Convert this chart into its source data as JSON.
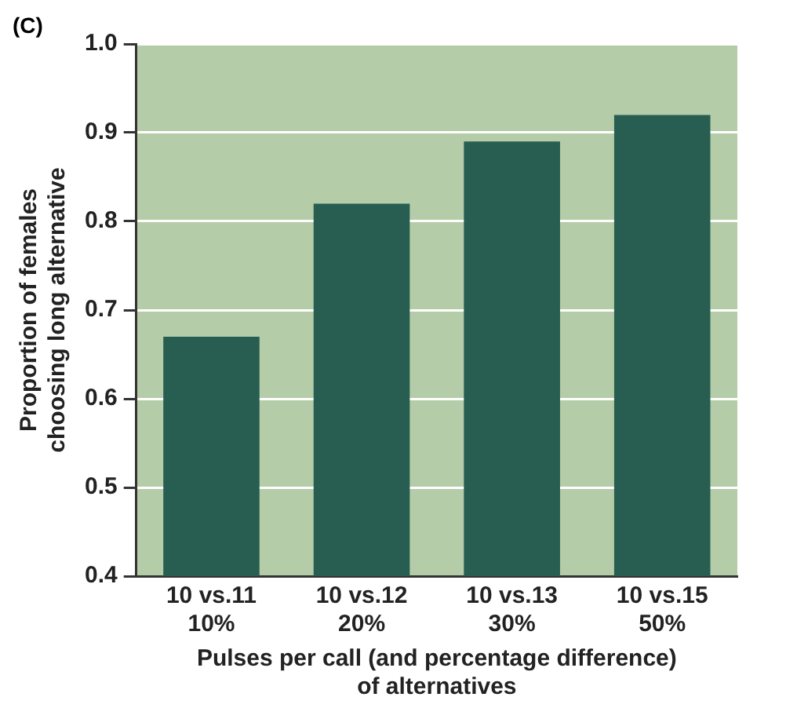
{
  "chart_data": {
    "type": "bar",
    "annotations": [
      "(C)"
    ],
    "xlabel": "Pulses per call (and percentage difference)\nof alternatives",
    "ylabel": "Proportion of females\nchoosing long alternative",
    "categories": [
      "10 vs.11\n10%",
      "10 vs.12\n20%",
      "10 vs.13\n30%",
      "10 vs.15\n50%"
    ],
    "values": [
      0.67,
      0.82,
      0.89,
      0.92
    ],
    "color": "#285e52",
    "ylim": [
      0.4,
      1.0
    ],
    "yticks": [
      0.4,
      0.5,
      0.6,
      0.7,
      0.8,
      0.9,
      {
        "value": 1.0,
        "label": "1.0"
      }
    ],
    "grid": "y",
    "legend": false
  }
}
